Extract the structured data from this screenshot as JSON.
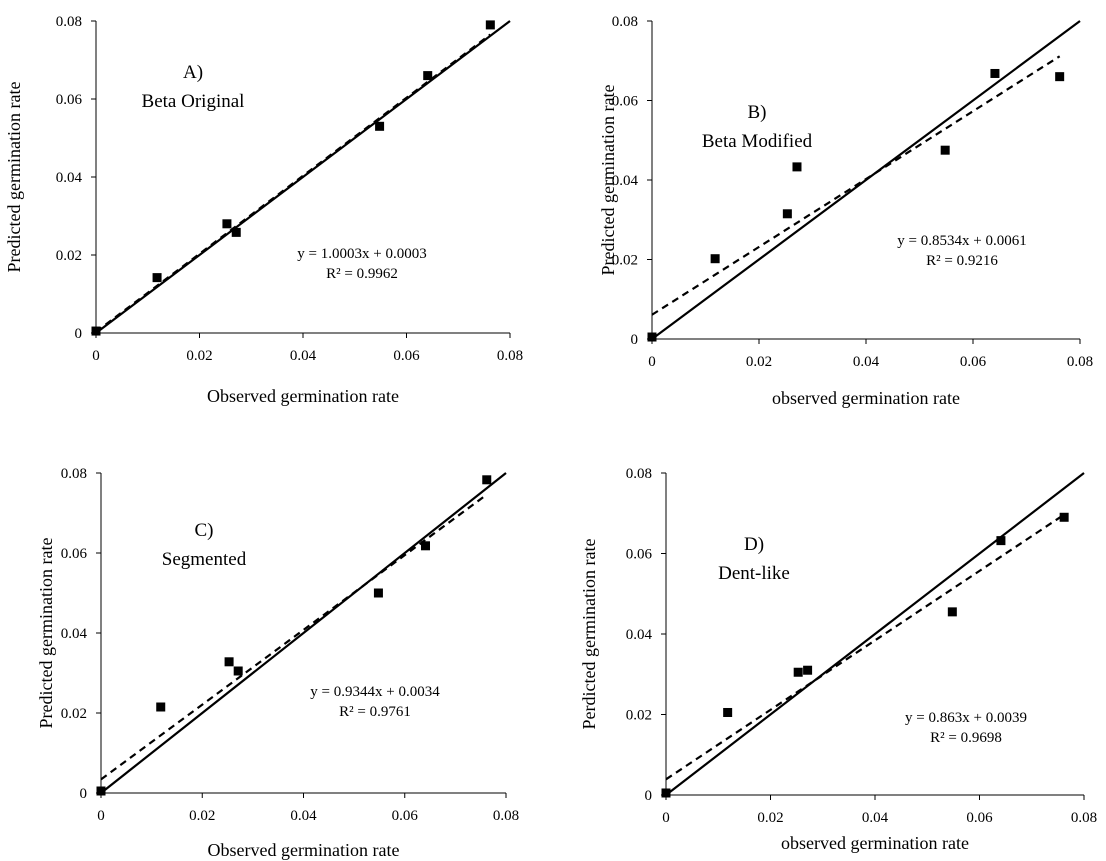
{
  "chart_data": [
    {
      "type": "scatter",
      "panel_label": "A)",
      "model_name": "Beta Original",
      "xlabel": "Observed germination rate",
      "ylabel": "Predicted germination rate",
      "xlim": [
        0,
        0.08
      ],
      "ylim": [
        0,
        0.08
      ],
      "x_ticks": [
        "0",
        "0.02",
        "0.04",
        "0.06",
        "0.08"
      ],
      "y_ticks": [
        "0",
        "0.02",
        "0.04",
        "0.06",
        "0.08"
      ],
      "points": {
        "x": [
          0.0,
          0.0118,
          0.0253,
          0.0271,
          0.0548,
          0.0641,
          0.0762
        ],
        "y": [
          0.0005,
          0.0142,
          0.028,
          0.0258,
          0.053,
          0.066,
          0.079
        ]
      },
      "one_to_one_line": true,
      "fit": {
        "slope": 1.0003,
        "intercept": 0.0003
      },
      "equation": "y = 1.0003x + 0.0003",
      "r2": "R² = 0.9962",
      "colors": {
        "points": "#000000",
        "lines": "#000000"
      }
    },
    {
      "type": "scatter",
      "panel_label": "B)",
      "model_name": "Beta Modified",
      "xlabel": "observed germination rate",
      "ylabel": "Predicted germination rate",
      "xlim": [
        0,
        0.08
      ],
      "ylim": [
        0,
        0.08
      ],
      "x_ticks": [
        "0",
        "0.02",
        "0.04",
        "0.06",
        "0.08"
      ],
      "y_ticks": [
        "0",
        "0.02",
        "0.04",
        "0.06",
        "0.08"
      ],
      "points": {
        "x": [
          0.0,
          0.0118,
          0.0253,
          0.0271,
          0.0548,
          0.0641,
          0.0762
        ],
        "y": [
          0.0005,
          0.0202,
          0.0315,
          0.0433,
          0.0475,
          0.0668,
          0.066
        ]
      },
      "one_to_one_line": true,
      "fit": {
        "slope": 0.8534,
        "intercept": 0.0061
      },
      "equation": "y = 0.8534x + 0.0061",
      "r2": "R² = 0.9216",
      "colors": {
        "points": "#000000",
        "lines": "#000000"
      }
    },
    {
      "type": "scatter",
      "panel_label": "C)",
      "model_name": "Segmented",
      "xlabel": "Observed germination rate",
      "ylabel": "Predicted germination rate",
      "xlim": [
        0,
        0.08
      ],
      "ylim": [
        0,
        0.08
      ],
      "x_ticks": [
        "0",
        "0.02",
        "0.04",
        "0.06",
        "0.08"
      ],
      "y_ticks": [
        "0",
        "0.02",
        "0.04",
        "0.06",
        "0.08"
      ],
      "points": {
        "x": [
          0.0,
          0.0118,
          0.0253,
          0.0271,
          0.0548,
          0.0641,
          0.0762
        ],
        "y": [
          0.0005,
          0.0215,
          0.0328,
          0.0305,
          0.05,
          0.0618,
          0.0783
        ]
      },
      "one_to_one_line": true,
      "fit": {
        "slope": 0.9344,
        "intercept": 0.0034
      },
      "equation": "y = 0.9344x + 0.0034",
      "r2": "R² = 0.9761",
      "colors": {
        "points": "#000000",
        "lines": "#000000"
      }
    },
    {
      "type": "scatter",
      "panel_label": "D)",
      "model_name": "Dent-like",
      "xlabel": "observed germination rate",
      "ylabel": "Perdicted germination rate",
      "xlim": [
        0,
        0.08
      ],
      "ylim": [
        0,
        0.08
      ],
      "x_ticks": [
        "0",
        "0.02",
        "0.04",
        "0.06",
        "0.08"
      ],
      "y_ticks": [
        "0",
        "0.02",
        "0.04",
        "0.06",
        "0.08"
      ],
      "points": {
        "x": [
          0.0,
          0.0118,
          0.0253,
          0.0271,
          0.0548,
          0.0641,
          0.0762
        ],
        "y": [
          0.0005,
          0.0205,
          0.0305,
          0.031,
          0.0455,
          0.0632,
          0.069
        ]
      },
      "one_to_one_line": true,
      "fit": {
        "slope": 0.863,
        "intercept": 0.0039
      },
      "equation": "y = 0.863x + 0.0039",
      "r2": "R² = 0.9698",
      "colors": {
        "points": "#000000",
        "lines": "#000000"
      }
    }
  ]
}
